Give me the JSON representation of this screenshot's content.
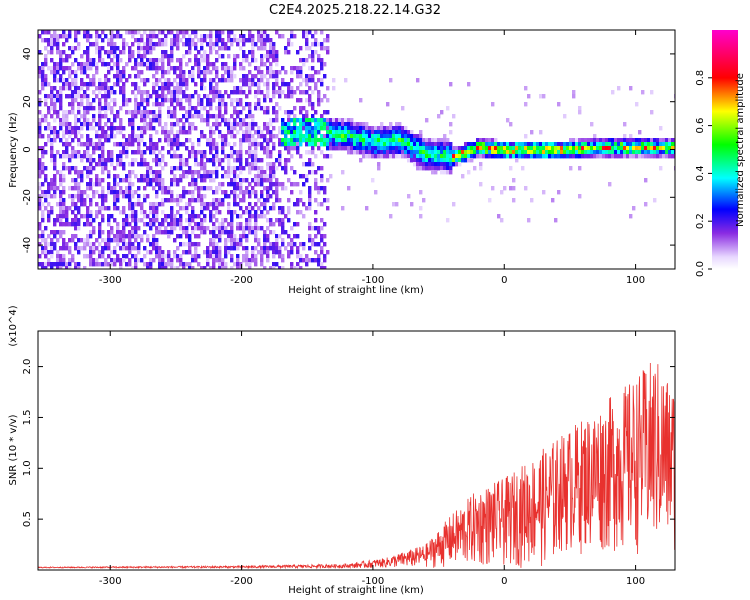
{
  "title": "C2E4.2025.218.22.14.G32",
  "chart_data": [
    {
      "type": "heatmap",
      "xlabel": "Height of straight line (km)",
      "ylabel": "Frequency (Hz)",
      "xlim": [
        -355,
        130
      ],
      "ylim": [
        -50,
        50
      ],
      "xticks": [
        -300,
        -200,
        -100,
        0,
        100
      ],
      "yticks": [
        -40,
        -20,
        0,
        20,
        40
      ],
      "colorbar": {
        "label": "Normalized spectral amplitude",
        "range": [
          0,
          1
        ],
        "ticks": [
          0.0,
          0.2,
          0.4,
          0.6,
          0.8
        ]
      },
      "ridge": [
        {
          "x": -160,
          "f": 8
        },
        {
          "x": -140,
          "f": 7
        },
        {
          "x": -120,
          "f": 6
        },
        {
          "x": -100,
          "f": 3
        },
        {
          "x": -80,
          "f": 4
        },
        {
          "x": -60,
          "f": -2
        },
        {
          "x": -40,
          "f": -3
        },
        {
          "x": -20,
          "f": 1
        },
        {
          "x": 0,
          "f": 0
        },
        {
          "x": 40,
          "f": 0
        },
        {
          "x": 80,
          "f": 1
        },
        {
          "x": 130,
          "f": 1
        }
      ]
    },
    {
      "type": "line",
      "xlabel": "Height of straight line (km)",
      "ylabel": "SNR (10 * v/v)",
      "y_multiplier": "(x10^4)",
      "xlim": [
        -355,
        130
      ],
      "ylim": [
        0,
        2.35
      ],
      "xticks": [
        -300,
        -200,
        -100,
        0,
        100
      ],
      "yticks": [
        0.5,
        1.0,
        1.5,
        2.0
      ],
      "series": [
        {
          "color": "#e8312e",
          "envelope": [
            {
              "x": -355,
              "y": 0.03
            },
            {
              "x": -200,
              "y": 0.04
            },
            {
              "x": -120,
              "y": 0.06
            },
            {
              "x": -90,
              "y": 0.12
            },
            {
              "x": -60,
              "y": 0.25
            },
            {
              "x": -40,
              "y": 0.55
            },
            {
              "x": -20,
              "y": 0.8
            },
            {
              "x": 0,
              "y": 0.9
            },
            {
              "x": 20,
              "y": 1.1
            },
            {
              "x": 40,
              "y": 1.3
            },
            {
              "x": 60,
              "y": 1.5
            },
            {
              "x": 80,
              "y": 1.7
            },
            {
              "x": 100,
              "y": 1.9
            },
            {
              "x": 115,
              "y": 2.1
            },
            {
              "x": 130,
              "y": 1.8
            }
          ]
        }
      ]
    }
  ]
}
